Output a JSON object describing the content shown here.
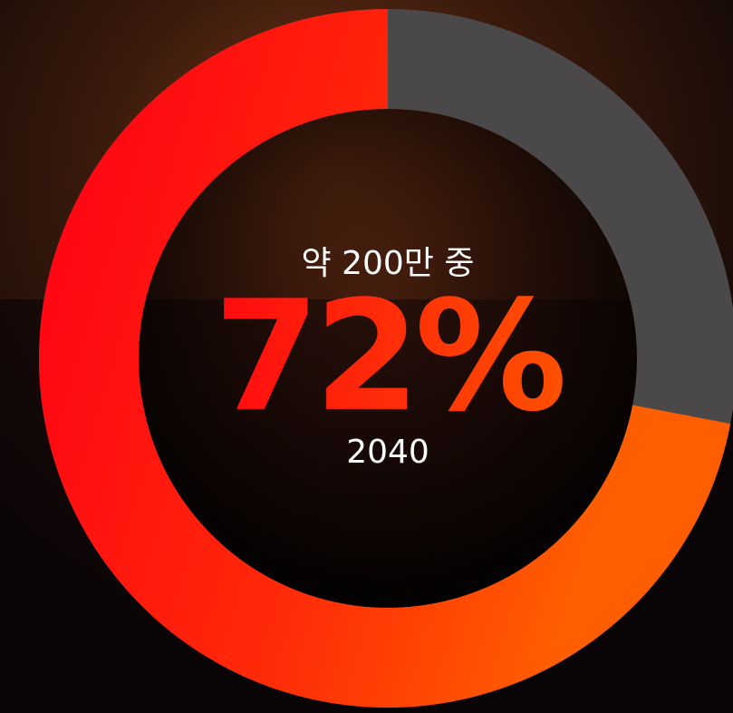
{
  "chart_data": {
    "type": "donut",
    "subtitle": "약 200만 중",
    "caption": "2040",
    "values": [
      72
    ],
    "value_labels": [
      "72%"
    ],
    "ylim": [
      0,
      100
    ],
    "color": "#ff1a0a",
    "track_color": "#4a4848"
  }
}
